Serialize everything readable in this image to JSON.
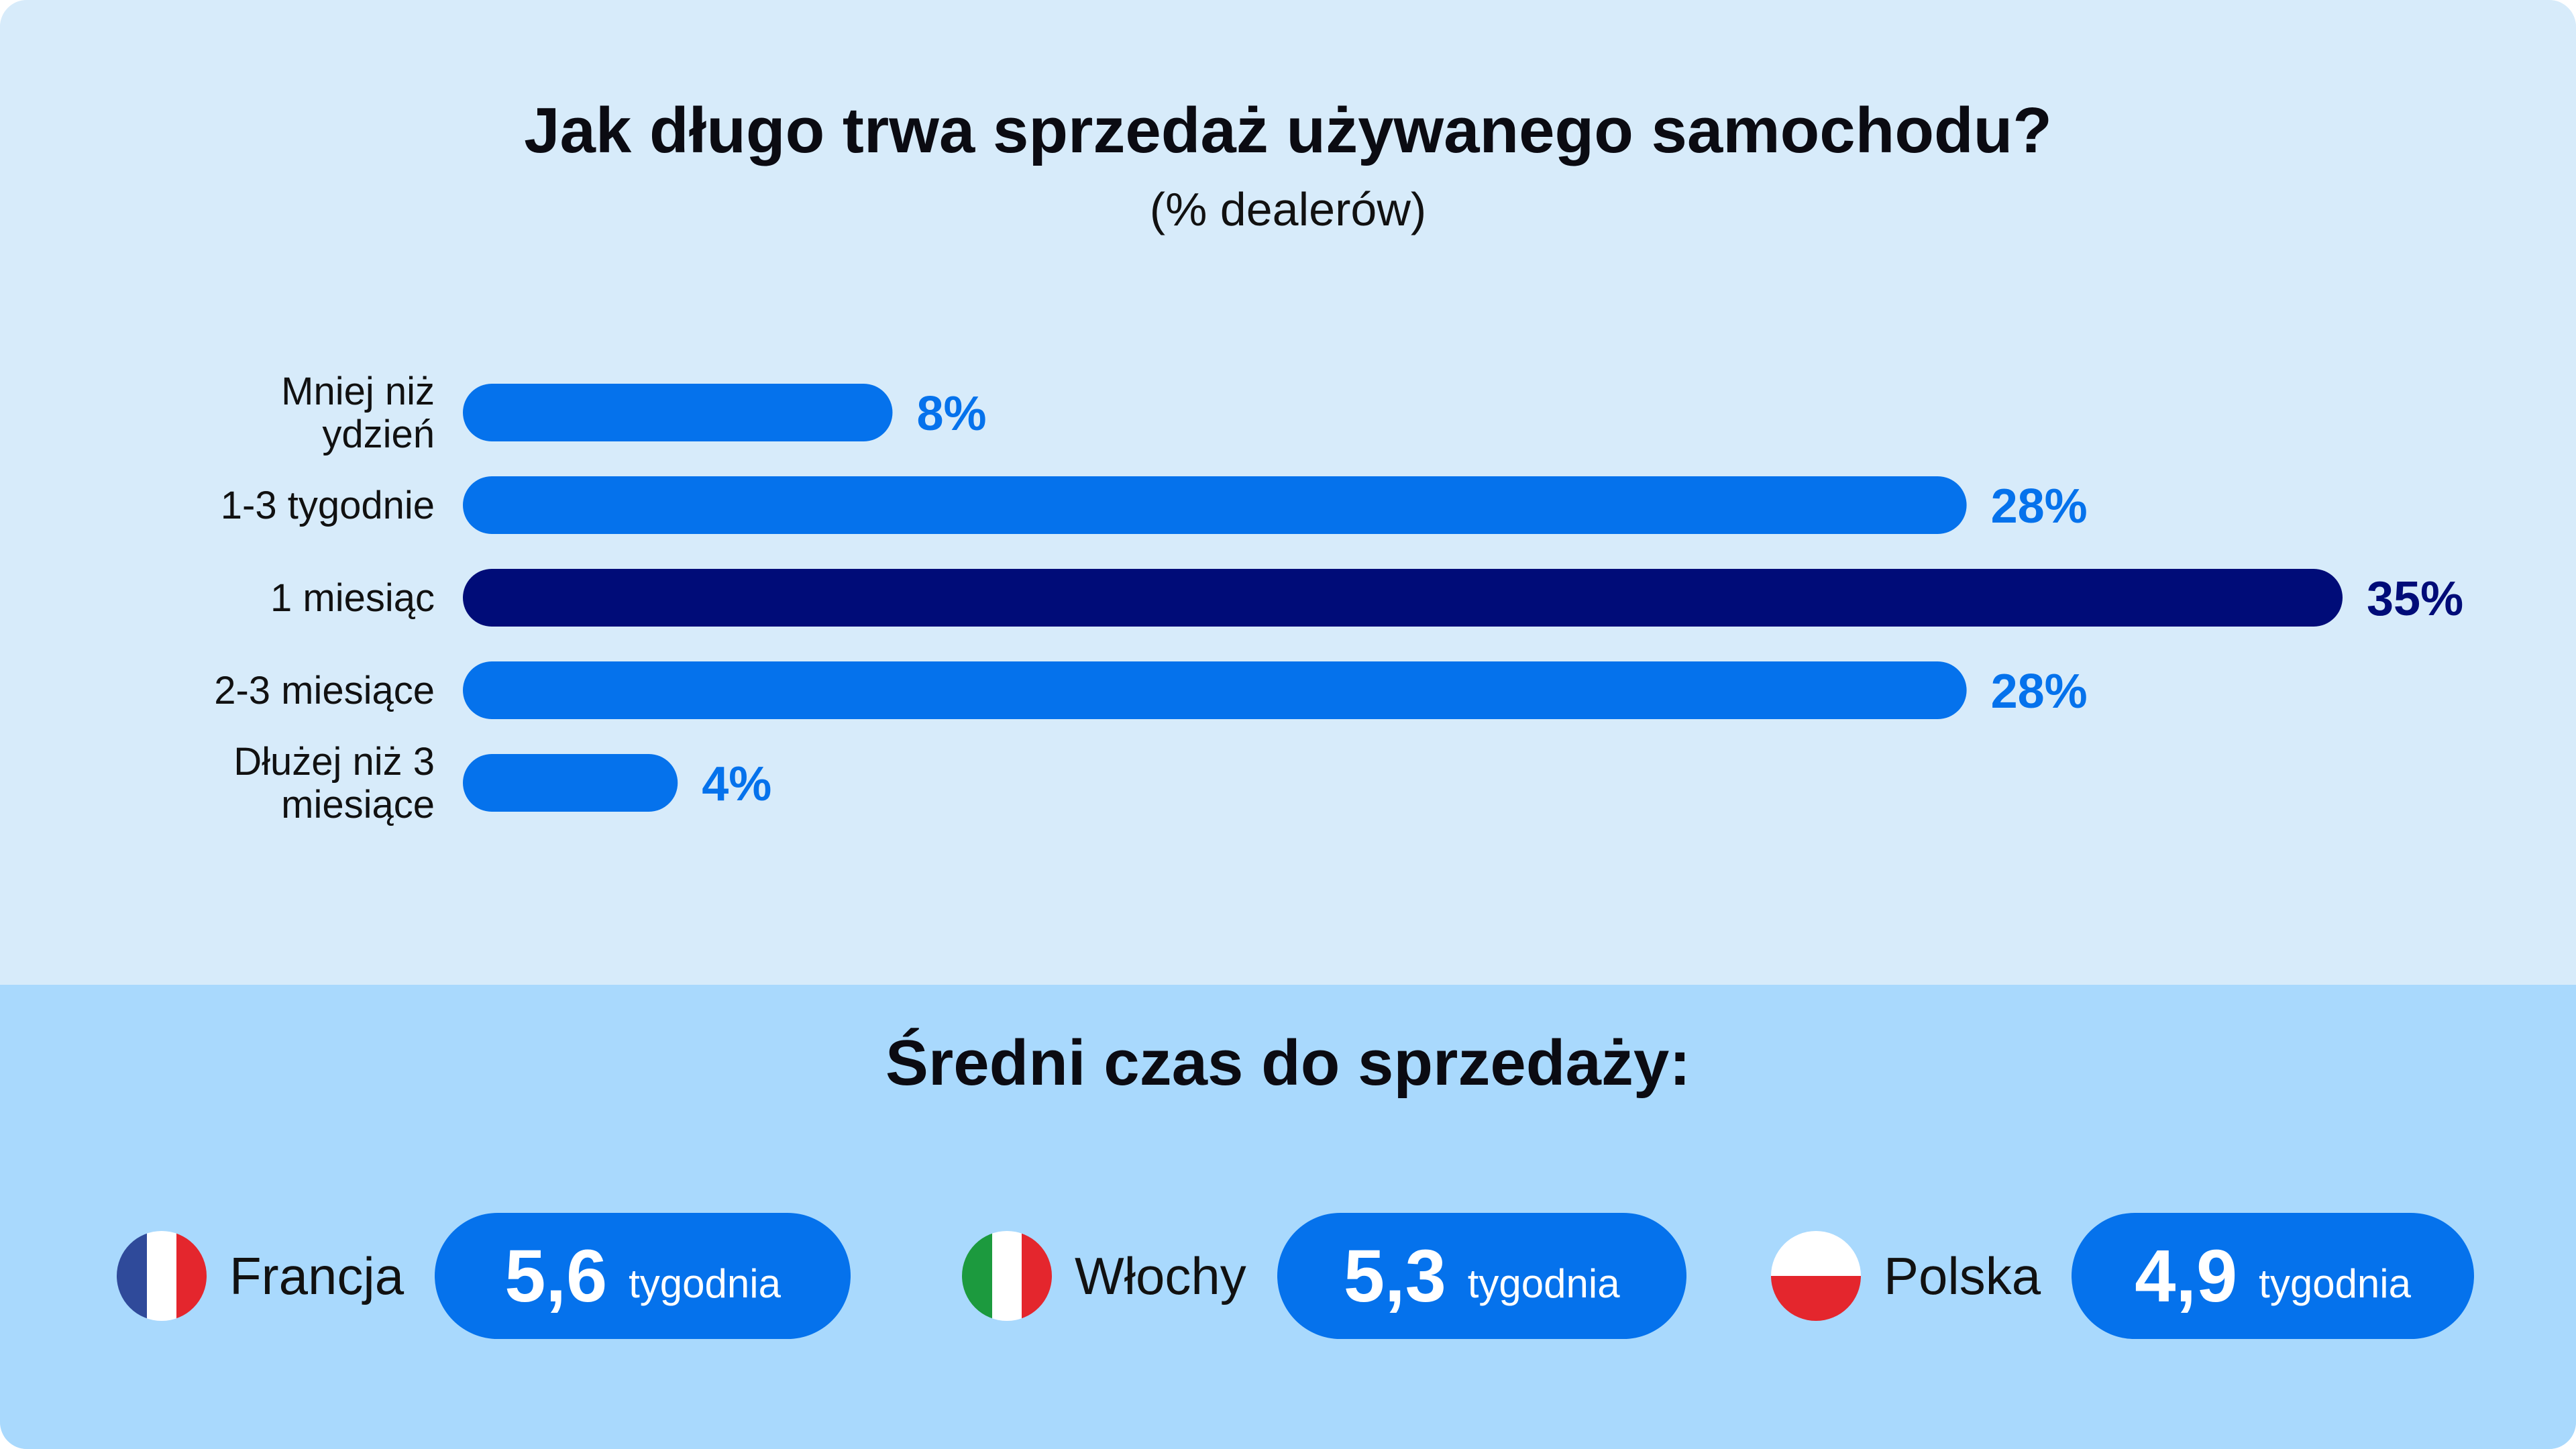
{
  "colors": {
    "bar": "#0572ec",
    "highlight": "#000c78",
    "top_bg": "#d7ebfa",
    "bottom_bg": "#a9d9fd"
  },
  "chart_data": {
    "type": "bar",
    "orientation": "horizontal",
    "title": "Jak długo trwa sprzedaż używanego samochodu?",
    "subtitle": "(% dealerów)",
    "categories": [
      [
        "Mniej niż",
        "ydzień"
      ],
      [
        "1-3 tygodnie"
      ],
      [
        "1 miesiąc"
      ],
      [
        "2-3 miesiące"
      ],
      [
        "Dłużej niż 3",
        "miesiące"
      ]
    ],
    "values": [
      8,
      28,
      35,
      28,
      4
    ],
    "value_labels": [
      "8%",
      "28%",
      "35%",
      "28%",
      "4%"
    ],
    "highlight_index": 2,
    "xlim": [
      0,
      35
    ],
    "grid": false
  },
  "average": {
    "title": "Średni czas do sprzedaży:",
    "countries": [
      {
        "name": "Francja",
        "value": "5,6",
        "unit": "tygodnia",
        "flag": "france-flag-icon"
      },
      {
        "name": "Włochy",
        "value": "5,3",
        "unit": "tygodnia",
        "flag": "italy-flag-icon"
      },
      {
        "name": "Polska",
        "value": "4,9",
        "unit": "tygodnia",
        "flag": "poland-flag-icon"
      }
    ]
  }
}
